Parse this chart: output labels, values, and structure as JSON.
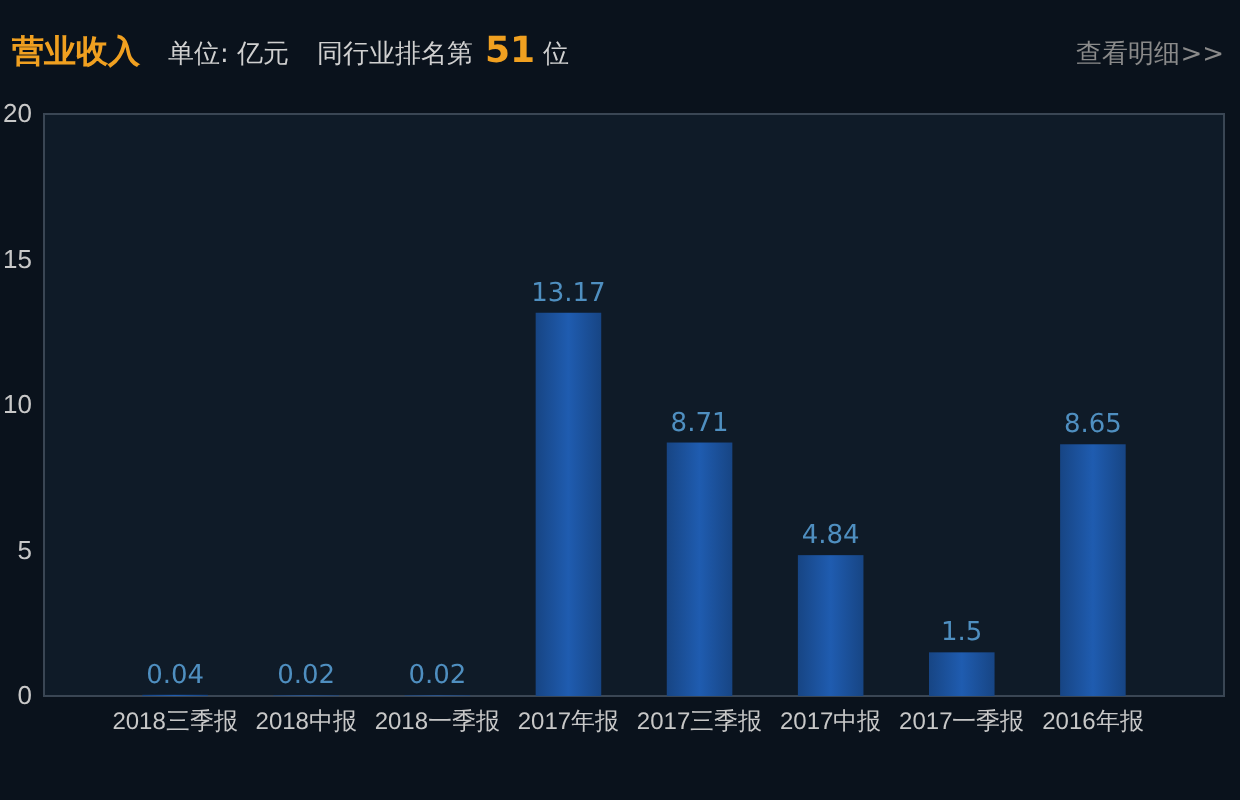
{
  "chart_data": {
    "type": "bar",
    "title": "营业收入",
    "subtitle": "单位: 亿元",
    "annotations": [
      "同行业排名第",
      "51",
      "位",
      "查看明细>>"
    ],
    "categories": [
      "2018三季报",
      "2018中报",
      "2018一季报",
      "2017年报",
      "2017三季报",
      "2017中报",
      "2017一季报",
      "2016年报"
    ],
    "values": [
      0.04,
      0.02,
      0.02,
      13.17,
      8.71,
      4.84,
      1.5,
      8.65
    ],
    "color": "#1f5cb0",
    "ylim": [
      0,
      20
    ],
    "yticks": [
      0,
      5,
      10,
      15,
      20
    ],
    "grid": false,
    "data_labels": true
  }
}
